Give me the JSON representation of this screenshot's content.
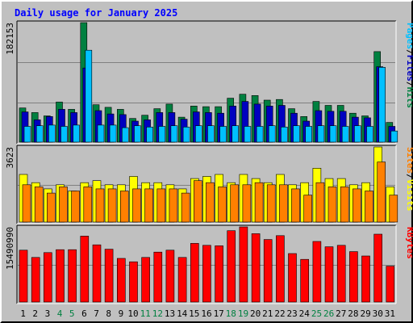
{
  "chart_data": {
    "type": "bar",
    "title": "Daily usage for January 2025",
    "categories": [
      "1",
      "2",
      "3",
      "4",
      "5",
      "6",
      "7",
      "8",
      "9",
      "10",
      "11",
      "12",
      "13",
      "14",
      "15",
      "16",
      "17",
      "18",
      "19",
      "20",
      "21",
      "22",
      "23",
      "24",
      "25",
      "26",
      "27",
      "28",
      "29",
      "30",
      "31"
    ],
    "weekend_days": [
      "4",
      "5",
      "11",
      "12",
      "18",
      "19",
      "25",
      "26"
    ],
    "panels": [
      {
        "id": "hits",
        "max_label": "182153",
        "max_value": 182153,
        "legend": [
          "Pages",
          "/",
          "Files",
          "/",
          "Hits"
        ],
        "legend_colors": [
          "#00c0ff",
          "#000000",
          "#0000c0",
          "#000000",
          "#008040"
        ],
        "series": [
          {
            "name": "Hits",
            "color": "#008040",
            "values": [
              52000,
              45000,
              40000,
              61000,
              50000,
              182153,
              57000,
              53000,
              50000,
              36000,
              41000,
              51000,
              58000,
              38000,
              55000,
              54000,
              54000,
              67000,
              73000,
              71000,
              64000,
              65000,
              51000,
              39000,
              62000,
              56000,
              56000,
              44000,
              40000,
              138000,
              30000
            ]
          },
          {
            "name": "Files",
            "color": "#0000c0",
            "values": [
              46000,
              34000,
              39000,
              50000,
              45000,
              113000,
              48000,
              43000,
              42000,
              32000,
              34000,
              45000,
              45000,
              35000,
              46000,
              45000,
              44000,
              55000,
              62000,
              58000,
              55000,
              56000,
              44000,
              32000,
              48000,
              47000,
              47000,
              38000,
              37000,
              115000,
              24000
            ]
          },
          {
            "name": "Pages",
            "color": "#00c0ff",
            "values": [
              24000,
              25000,
              26000,
              24000,
              26000,
              140000,
              26000,
              26000,
              22000,
              25000,
              23000,
              24000,
              25000,
              23000,
              25000,
              25000,
              24000,
              25000,
              24000,
              24000,
              25000,
              23000,
              25000,
              24000,
              25000,
              25000,
              24000,
              25000,
              24000,
              114000,
              17000
            ]
          }
        ]
      },
      {
        "id": "visits",
        "max_label": "3623",
        "max_value": 3623,
        "legend": [
          "Sites",
          "/",
          "Visits"
        ],
        "legend_colors": [
          "#ff8000",
          "#000000",
          "#ffff00"
        ],
        "series": [
          {
            "name": "Visits",
            "color": "#ffff00",
            "values": [
              2300,
              1900,
              1600,
              1800,
              1500,
              1900,
              2000,
              1800,
              1800,
              2200,
              1900,
              1900,
              1800,
              1600,
              2100,
              2200,
              2300,
              1900,
              2300,
              2100,
              1900,
              2300,
              1800,
              1900,
              2600,
              2100,
              2100,
              1800,
              1900,
              3623,
              1700
            ]
          },
          {
            "name": "Sites",
            "color": "#ff8000",
            "values": [
              1800,
              1700,
              1400,
              1700,
              1500,
              1700,
              1600,
              1600,
              1500,
              1600,
              1600,
              1600,
              1600,
              1400,
              2000,
              1900,
              1700,
              1800,
              1800,
              1900,
              1800,
              1800,
              1600,
              1300,
              1900,
              1700,
              1700,
              1600,
              1500,
              2900,
              1300
            ]
          }
        ]
      },
      {
        "id": "kbytes",
        "max_label": "15490990",
        "max_value": 15490990,
        "legend": [
          "KBytes"
        ],
        "legend_colors": [
          "#ff0000"
        ],
        "series": [
          {
            "name": "KBytes",
            "color": "#ff0000",
            "values": [
              10700000,
              9200000,
              10200000,
              10800000,
              10800000,
              13600000,
              11800000,
              10900000,
              9000000,
              8300000,
              9200000,
              10300000,
              10700000,
              9200000,
              12100000,
              11700000,
              11600000,
              14700000,
              15490990,
              14100000,
              12900000,
              13700000,
              10000000,
              8800000,
              12500000,
              11400000,
              11700000,
              10400000,
              9500000,
              14000000,
              7400000
            ]
          }
        ]
      }
    ]
  }
}
